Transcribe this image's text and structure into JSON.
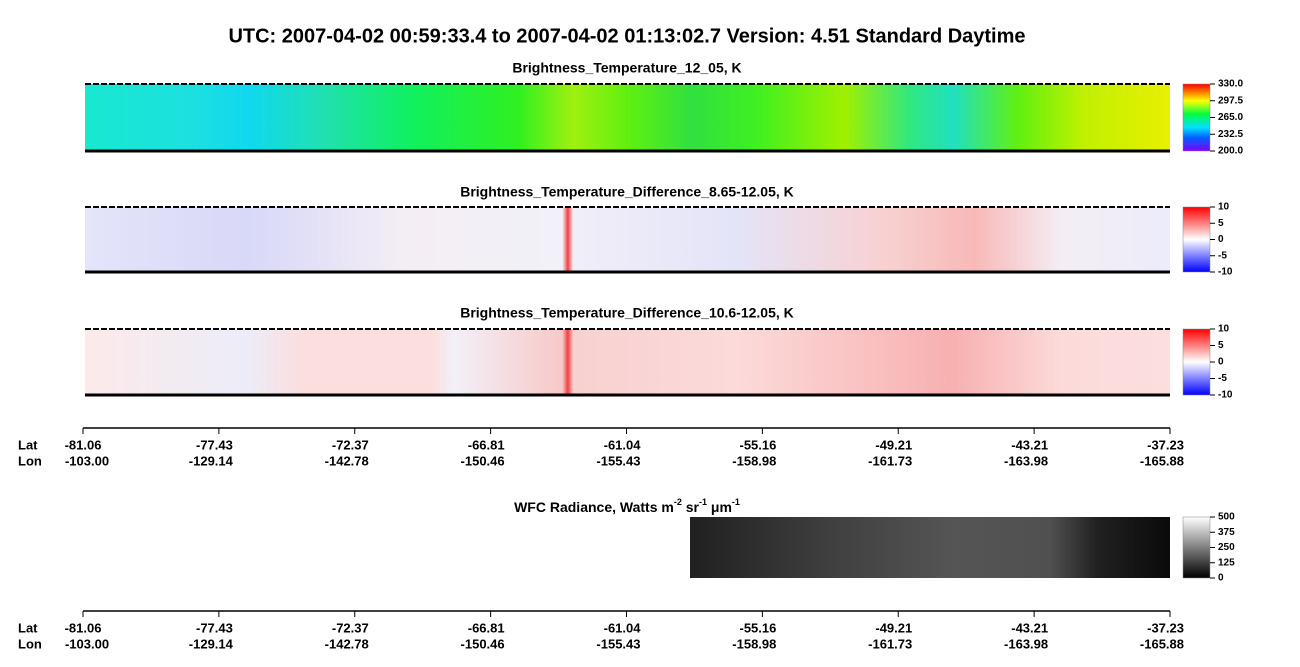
{
  "header": {
    "title": "UTC:  2007-04-02   00:59:33.4  to  2007-04-02   01:13:02.7    Version: 4.51  Standard Daytime"
  },
  "panels": [
    {
      "title": "Brightness_Temperature_12_05, K",
      "colorbar": [
        "330.0",
        "297.5",
        "265.0",
        "232.5",
        "200.0"
      ]
    },
    {
      "title": "Brightness_Temperature_Difference_8.65-12.05, K",
      "colorbar": [
        "10",
        "5",
        "0",
        "-5",
        "-10"
      ]
    },
    {
      "title": "Brightness_Temperature_Difference_10.6-12.05, K",
      "colorbar": [
        "10",
        "5",
        "0",
        "-5",
        "-10"
      ]
    },
    {
      "title_parts": [
        "WFC Radiance, Watts m",
        "-2",
        " sr",
        "-1",
        " μm",
        "-1"
      ],
      "colorbar": [
        "500",
        "375",
        "250",
        "125",
        "0"
      ]
    }
  ],
  "axes": [
    {
      "lat_label": "Lat",
      "lon_label": "Lon",
      "lat": [
        "-81.06",
        "-77.43",
        "-72.37",
        "-66.81",
        "-61.04",
        "-55.16",
        "-49.21",
        "-43.21",
        "-37.23"
      ],
      "lon": [
        "-103.00",
        "-129.14",
        "-142.78",
        "-150.46",
        "-155.43",
        "-158.98",
        "-161.73",
        "-163.98",
        "-165.88"
      ]
    },
    {
      "lat_label": "Lat",
      "lon_label": "Lon",
      "lat": [
        "-81.06",
        "-77.43",
        "-72.37",
        "-66.81",
        "-61.04",
        "-55.16",
        "-49.21",
        "-43.21",
        "-37.23"
      ],
      "lon": [
        "-103.00",
        "-129.14",
        "-142.78",
        "-150.46",
        "-155.43",
        "-158.98",
        "-161.73",
        "-163.98",
        "-165.88"
      ]
    }
  ]
}
